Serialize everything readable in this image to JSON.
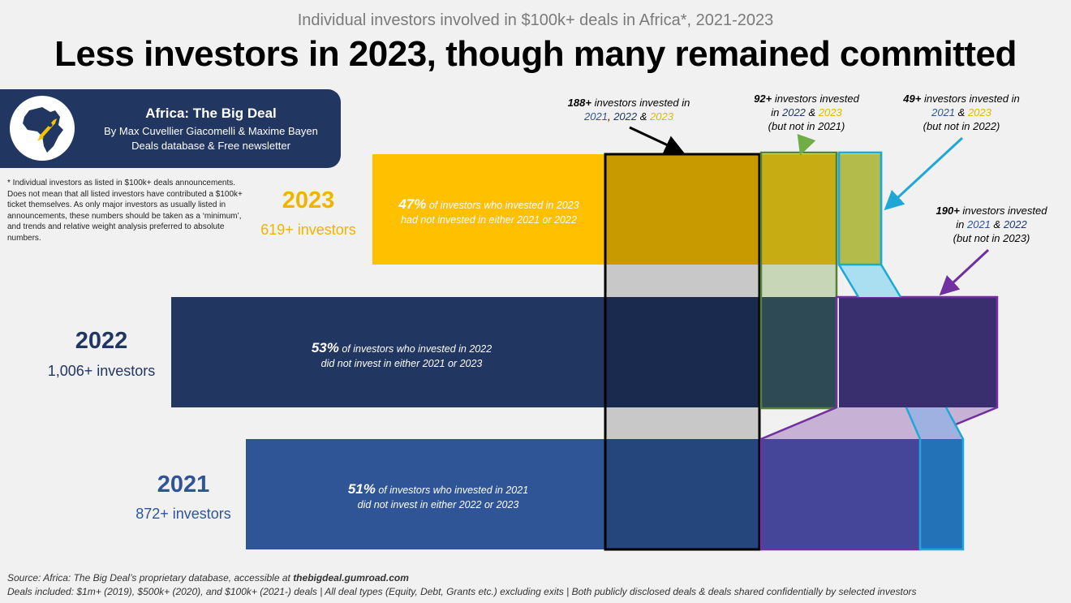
{
  "subtitle": "Individual investors involved in $100k+ deals in Africa*, 2021-2023",
  "title": "Less investors in 2023, though many remained committed",
  "brand": {
    "name": "Africa: The Big Deal",
    "authors": "By Max Cuvellier Giacomelli & Maxime Bayen",
    "tagline": "Deals database & Free newsletter"
  },
  "footnote": "* Individual investors as listed in $100k+ deals announcements. Does not mean that all listed investors have contributed a $100k+ ticket themselves. As only major investors as usually listed in announcements, these numbers should be taken as a ‘minimum’, and trends and relative weight analysis preferred to absolute numbers.",
  "chart_data": {
    "type": "bar",
    "title": "Less investors in 2023, though many remained committed",
    "categories": [
      "2023",
      "2022",
      "2021"
    ],
    "values": [
      619,
      1006,
      872
    ],
    "count_labels": [
      "619+ investors",
      "1,006+ investors",
      "872+ investors"
    ],
    "unique_share_pct": [
      47,
      53,
      51
    ],
    "bar_notes": [
      {
        "pct": "47%",
        "line1": "of investors who invested in 2023",
        "line2": "had not invested in either 2021 or 2022"
      },
      {
        "pct": "53%",
        "line1": "of investors who invested in 2022",
        "line2": "did not invest in either 2021 or 2023"
      },
      {
        "pct": "51%",
        "line1": "of investors who invested in 2021",
        "line2": "did not invest in either 2022 or 2023"
      }
    ],
    "overlaps": [
      {
        "years": [
          "2021",
          "2022",
          "2023"
        ],
        "value": 188
      },
      {
        "years": [
          "2022",
          "2023"
        ],
        "value": 92
      },
      {
        "years": [
          "2021",
          "2023"
        ],
        "value": 49
      },
      {
        "years": [
          "2021",
          "2022"
        ],
        "value": 190
      }
    ],
    "annotations": {
      "all_three": {
        "count": "188+",
        "text": "investors invested in",
        "y1": "2021",
        "y2": "2022",
        "y3": "2023"
      },
      "y22_y23": {
        "count": "92+",
        "text": "investors invested",
        "pre": "in",
        "y1": "2022",
        "y2": "2023",
        "note": "(but not in 2021)"
      },
      "y21_y23": {
        "count": "49+",
        "text": "investors invested in",
        "y1": "2021",
        "y2": "2023",
        "note": "(but not in 2022)"
      },
      "y21_y22": {
        "count": "190+",
        "text": "investors invested",
        "pre": "in",
        "y1": "2021",
        "y2": "2022",
        "note": "(but not in 2023)"
      }
    },
    "colors": {
      "bar2023": "#ffc000",
      "bar2022": "#213661",
      "bar2021": "#2f5597",
      "all_three": "#000000",
      "y22_y23": "#548235",
      "y21_y23": "#1fa7d8",
      "y21_y22": "#7030a0"
    }
  },
  "amp": "&",
  "comma": ",",
  "source": {
    "prefix": "Source: Africa: The Big Deal’s proprietary database, accessible at",
    "link": "thebigdeal.gumroad.com"
  },
  "deals_included": "Deals included:  $1m+ (2019), $500k+ (2020), and $100k+ (2021-) deals | All deal types (Equity, Debt, Grants etc.) excluding exits | Both publicly disclosed deals & deals shared confidentially by selected investors"
}
